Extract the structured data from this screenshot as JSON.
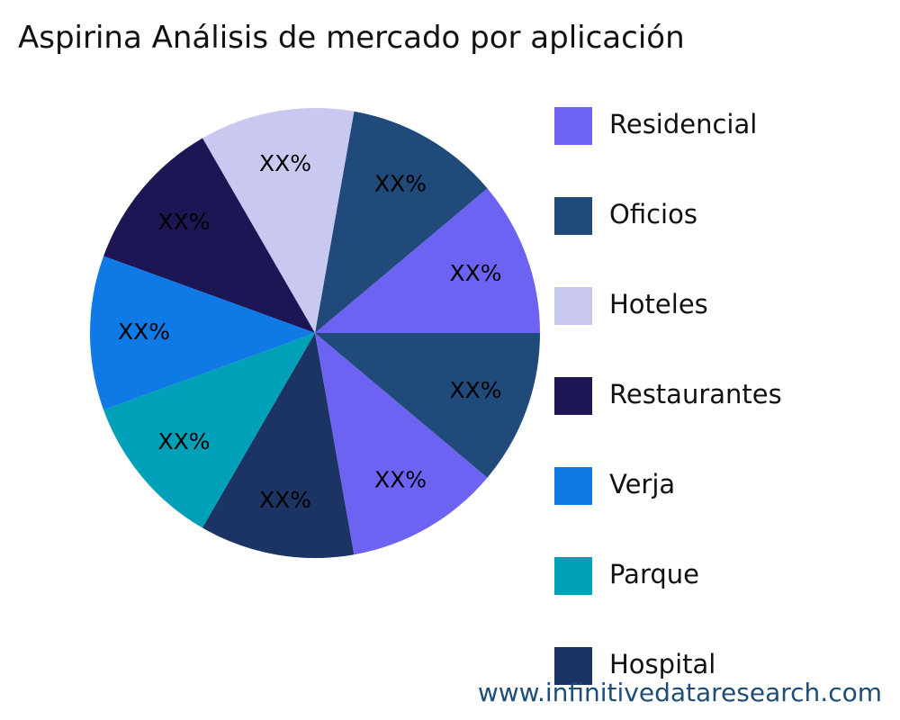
{
  "chart_data": {
    "type": "pie",
    "title": "Aspirina Análisis de mercado por aplicación",
    "legend_position": "right",
    "legend": [
      {
        "name": "Residencial",
        "color": "#6c63f2"
      },
      {
        "name": "Oficios",
        "color": "#1f4a7a"
      },
      {
        "name": "Hoteles",
        "color": "#c8c8f0"
      },
      {
        "name": "Restaurantes",
        "color": "#1c1654"
      },
      {
        "name": "Verja",
        "color": "#0f7ae5"
      },
      {
        "name": "Parque",
        "color": "#00a0b8"
      },
      {
        "name": "Hospital",
        "color": "#1c3464"
      }
    ],
    "slices": [
      {
        "label": "XX%",
        "value": 11.1,
        "color": "#6c63f2"
      },
      {
        "label": "XX%",
        "value": 11.1,
        "color": "#1f4a7a"
      },
      {
        "label": "XX%",
        "value": 11.1,
        "color": "#c8c8f0"
      },
      {
        "label": "XX%",
        "value": 11.1,
        "color": "#1c1654"
      },
      {
        "label": "XX%",
        "value": 11.1,
        "color": "#0f7ae5"
      },
      {
        "label": "XX%",
        "value": 11.1,
        "color": "#00a0b8"
      },
      {
        "label": "XX%",
        "value": 11.1,
        "color": "#1c3464"
      },
      {
        "label": "XX%",
        "value": 11.1,
        "color": "#6c63f2"
      },
      {
        "label": "XX%",
        "value": 11.1,
        "color": "#1f4a7a"
      }
    ]
  },
  "footer": {
    "source": "www.infinitivedataresearch.com"
  }
}
